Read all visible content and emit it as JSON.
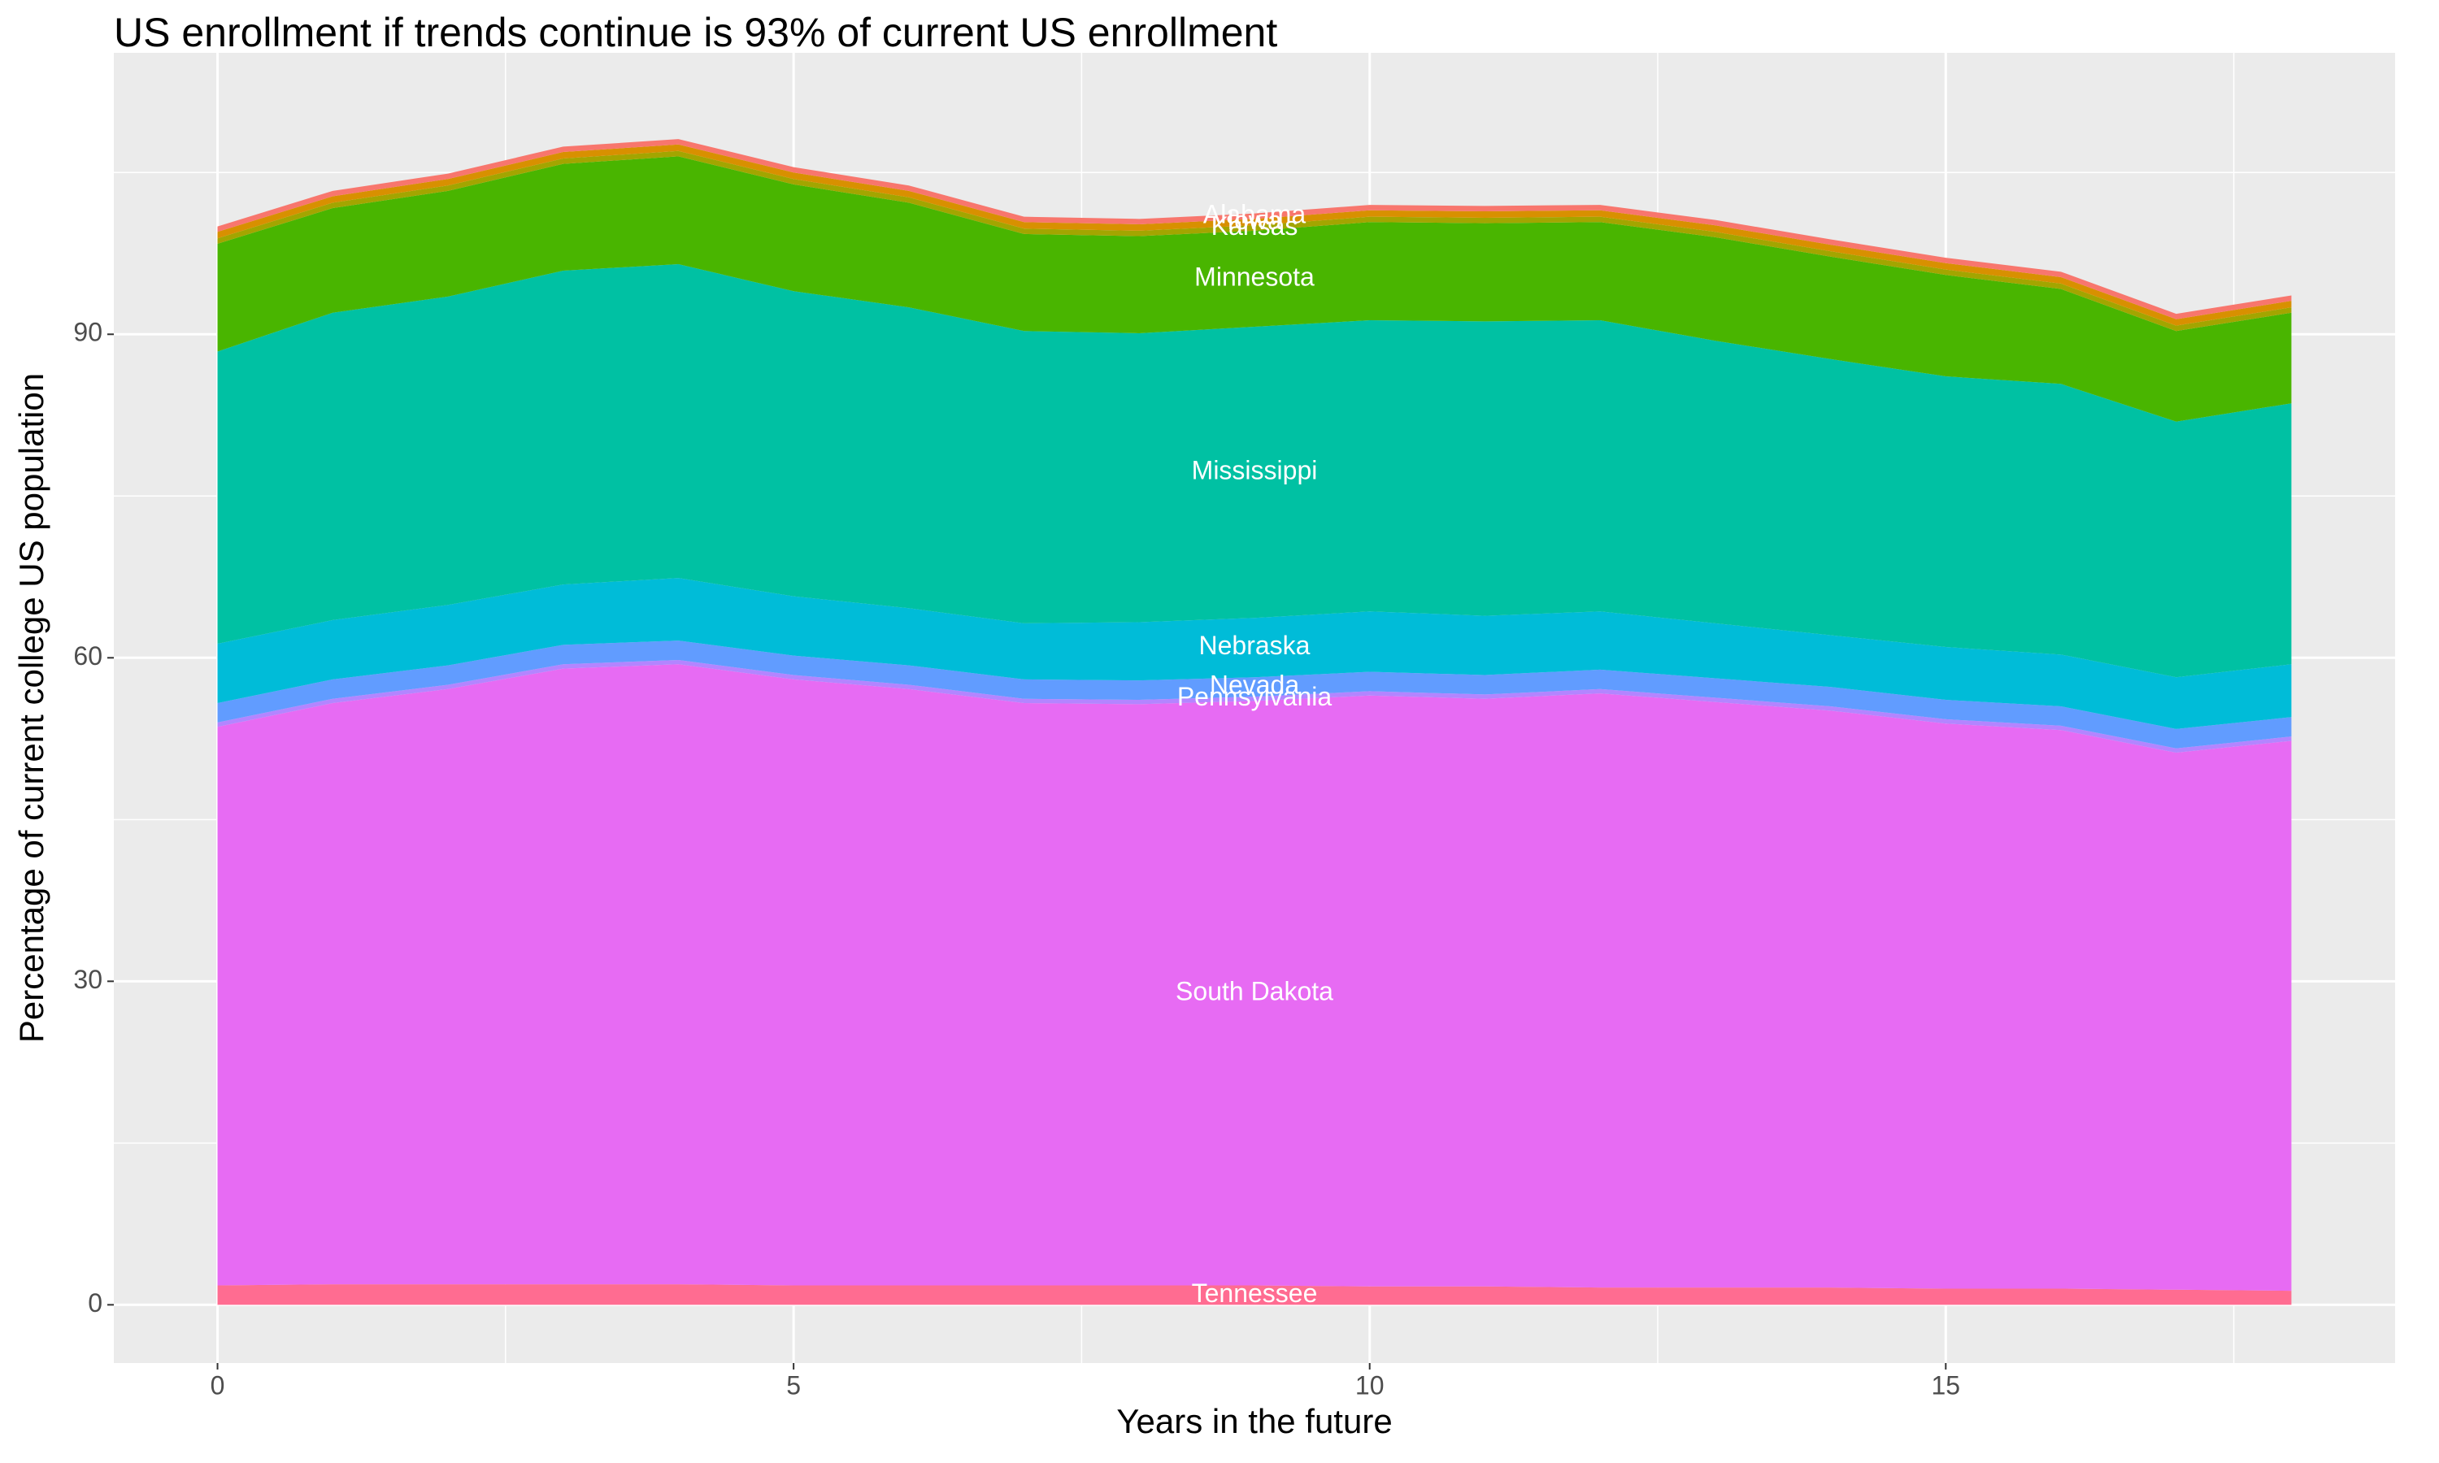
{
  "chart_data": {
    "type": "stacked_area",
    "title": "US enrollment if trends continue is 93% of current US enrollment",
    "x_label": "Years in the future",
    "y_label": "Percentage of current college US population",
    "x": [
      0,
      1,
      2,
      3,
      4,
      5,
      6,
      7,
      8,
      9,
      10,
      11,
      12,
      13,
      14,
      15,
      16,
      17,
      18
    ],
    "series": [
      {
        "name": "Tennessee",
        "color": "#FF6C91",
        "values": [
          1.8,
          1.9,
          1.9,
          1.9,
          1.9,
          1.8,
          1.8,
          1.8,
          1.8,
          1.8,
          1.7,
          1.7,
          1.6,
          1.6,
          1.6,
          1.5,
          1.5,
          1.4,
          1.3
        ]
      },
      {
        "name": "South Dakota",
        "color": "#E76BF3",
        "values": [
          51.8,
          53.9,
          55.2,
          57.1,
          57.5,
          56.2,
          55.3,
          54.0,
          53.9,
          54.2,
          54.8,
          54.5,
          55.1,
          54.3,
          53.5,
          52.4,
          51.8,
          49.8,
          51.0
        ]
      },
      {
        "name": "Pennsylvania",
        "color": "#B385FF",
        "values": [
          0.4,
          0.4,
          0.4,
          0.4,
          0.4,
          0.4,
          0.4,
          0.4,
          0.4,
          0.4,
          0.4,
          0.4,
          0.4,
          0.4,
          0.4,
          0.4,
          0.4,
          0.4,
          0.4
        ]
      },
      {
        "name": "Nevada",
        "color": "#619CFF",
        "values": [
          1.8,
          1.8,
          1.8,
          1.8,
          1.8,
          1.8,
          1.8,
          1.8,
          1.8,
          1.8,
          1.8,
          1.8,
          1.8,
          1.8,
          1.8,
          1.8,
          1.8,
          1.8,
          1.8
        ]
      },
      {
        "name": "Nebraska",
        "color": "#00BCD8",
        "values": [
          5.5,
          5.5,
          5.6,
          5.6,
          5.8,
          5.5,
          5.3,
          5.2,
          5.4,
          5.5,
          5.6,
          5.5,
          5.4,
          5.1,
          4.8,
          4.9,
          4.8,
          4.8,
          4.9
        ]
      },
      {
        "name": "Mississippi",
        "color": "#00C1A3",
        "values": [
          27.1,
          28.5,
          28.6,
          29.1,
          29.1,
          28.3,
          27.9,
          27.1,
          26.8,
          27.0,
          27.0,
          27.3,
          27.0,
          26.2,
          25.6,
          25.1,
          25.1,
          23.7,
          24.2
        ]
      },
      {
        "name": "Minnesota",
        "color": "#49B500",
        "values": [
          10.0,
          9.7,
          9.8,
          9.9,
          10.0,
          9.9,
          9.7,
          9.0,
          9.0,
          8.9,
          9.1,
          9.1,
          9.1,
          9.6,
          9.5,
          9.4,
          8.8,
          8.4,
          8.4
        ]
      },
      {
        "name": "Kansas",
        "color": "#A3A500",
        "values": [
          0.5,
          0.5,
          0.5,
          0.5,
          0.5,
          0.5,
          0.5,
          0.5,
          0.5,
          0.5,
          0.5,
          0.5,
          0.5,
          0.5,
          0.5,
          0.5,
          0.5,
          0.5,
          0.5
        ]
      },
      {
        "name": "Iowa",
        "color": "#D89000",
        "values": [
          0.6,
          0.6,
          0.6,
          0.6,
          0.6,
          0.6,
          0.6,
          0.6,
          0.6,
          0.6,
          0.6,
          0.6,
          0.6,
          0.6,
          0.6,
          0.6,
          0.6,
          0.6,
          0.6
        ]
      },
      {
        "name": "Alabama",
        "color": "#F8766D",
        "values": [
          0.5,
          0.5,
          0.5,
          0.5,
          0.5,
          0.5,
          0.5,
          0.5,
          0.5,
          0.5,
          0.5,
          0.5,
          0.5,
          0.5,
          0.5,
          0.5,
          0.5,
          0.5,
          0.5
        ]
      }
    ],
    "label_at_x": 9,
    "xlim": [
      -0.9,
      18.9
    ],
    "xticks": [
      0,
      5,
      10,
      15
    ],
    "ylim": [
      -5.4,
      116.1
    ],
    "yticks": [
      0,
      30,
      60,
      90
    ],
    "grid": true
  }
}
